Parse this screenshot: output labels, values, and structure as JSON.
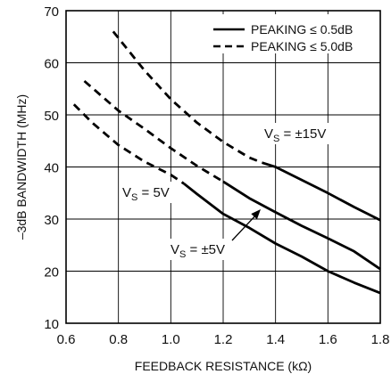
{
  "chart_data": {
    "type": "line",
    "xlabel": "FEEDBACK RESISTANCE (kΩ)",
    "ylabel": "–3dB BANDWIDTH (MHz)",
    "xlim": [
      0.6,
      1.8
    ],
    "ylim": [
      10,
      70
    ],
    "x_ticks": [
      "0.6",
      "0.8",
      "1.0",
      "1.2",
      "1.4",
      "1.6",
      "1.8"
    ],
    "y_ticks": [
      "10",
      "20",
      "30",
      "40",
      "50",
      "60",
      "70"
    ],
    "grid": true,
    "legend_position": "top-right",
    "legend": [
      {
        "label": "PEAKING ≤ 0.5dB",
        "style": "solid"
      },
      {
        "label": "PEAKING ≤ 5.0dB",
        "style": "dashed"
      }
    ],
    "series": [
      {
        "supply": "±15V",
        "style": "dashed",
        "x": [
          0.78,
          0.9,
          1.0,
          1.1,
          1.2,
          1.3,
          1.35
        ],
        "y": [
          66,
          58.5,
          53,
          48.5,
          44.8,
          41.8,
          40.8
        ]
      },
      {
        "supply": "±15V",
        "style": "solid",
        "x": [
          1.35,
          1.4,
          1.5,
          1.6,
          1.7,
          1.8
        ],
        "y": [
          40.8,
          40,
          37.5,
          35,
          32.3,
          29.8
        ]
      },
      {
        "supply": "5V",
        "style": "dashed",
        "x": [
          0.67,
          0.8,
          0.9,
          1.0,
          1.1,
          1.2
        ],
        "y": [
          56.5,
          50.8,
          47.3,
          43.6,
          40.2,
          37.2
        ]
      },
      {
        "supply": "5V",
        "style": "solid",
        "x": [
          1.2,
          1.3,
          1.4,
          1.5,
          1.6,
          1.7,
          1.8
        ],
        "y": [
          37.2,
          34,
          31.3,
          28.7,
          26.3,
          23.8,
          20.4
        ]
      },
      {
        "supply": "±5V",
        "style": "dashed",
        "x": [
          0.63,
          0.7,
          0.8,
          0.9,
          1.0,
          1.05
        ],
        "y": [
          52,
          48.5,
          44.2,
          41,
          38.5,
          36.8
        ]
      },
      {
        "supply": "±5V",
        "style": "solid",
        "x": [
          1.05,
          1.1,
          1.2,
          1.3,
          1.4,
          1.5,
          1.6,
          1.7,
          1.8
        ],
        "y": [
          36.8,
          34.8,
          31,
          28.3,
          25.3,
          22.8,
          20,
          17.8,
          15.8
        ]
      }
    ],
    "annotations": [
      {
        "main": "V",
        "sub": "S",
        "rest": " = ±15V"
      },
      {
        "main": "V",
        "sub": "S",
        "rest": " = 5V"
      },
      {
        "main": "V",
        "sub": "S",
        "rest": " = ±5V"
      }
    ]
  }
}
